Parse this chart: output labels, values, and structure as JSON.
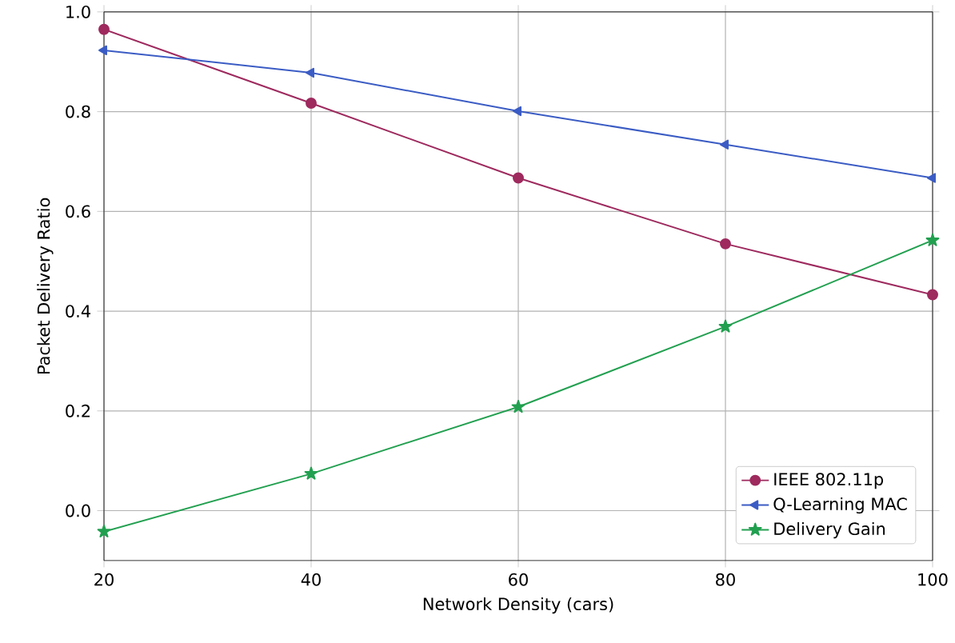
{
  "chart_data": {
    "type": "line",
    "xlabel": "Network Density (cars)",
    "ylabel": "Packet Delivery Ratio",
    "x": [
      20,
      40,
      60,
      80,
      100
    ],
    "series": [
      {
        "name": "IEEE 802.11p",
        "color": "#9e2a5e",
        "marker": "circle",
        "values": [
          0.965,
          0.817,
          0.667,
          0.535,
          0.433
        ]
      },
      {
        "name": "Q-Learning MAC",
        "color": "#3b5cc4",
        "marker": "triangle-left",
        "values": [
          0.923,
          0.878,
          0.801,
          0.734,
          0.667
        ]
      },
      {
        "name": "Delivery Gain",
        "color": "#22a050",
        "marker": "star",
        "values": [
          -0.042,
          0.074,
          0.208,
          0.369,
          0.542
        ]
      }
    ],
    "xlim": [
      20,
      100
    ],
    "ylim": [
      -0.1,
      1.0
    ],
    "xticks": [
      20,
      40,
      60,
      80,
      100
    ],
    "yticks": [
      {
        "value": 0,
        "label": "0.0"
      },
      0.2,
      0.4,
      0.6,
      0.8,
      {
        "value": 1,
        "label": "1.0"
      }
    ],
    "grid": true,
    "legend": "bottom right",
    "line_style": "solid"
  }
}
